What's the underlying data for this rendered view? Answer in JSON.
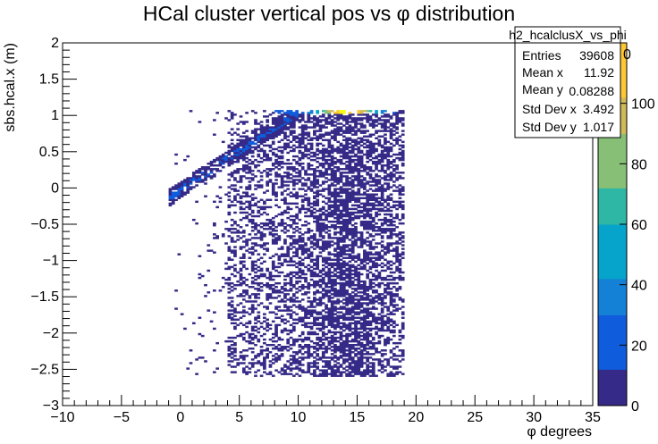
{
  "chart_data": {
    "type": "heatmap",
    "title": "HCal cluster vertical pos vs φ distribution",
    "xlabel": "φ degrees",
    "ylabel": "sbs.hcal.x (m)",
    "xlim": [
      -10,
      35
    ],
    "ylim": [
      -3,
      2
    ],
    "x_ticks": [
      -10,
      -5,
      0,
      5,
      10,
      15,
      20,
      25,
      30,
      35
    ],
    "x_tick_labels": [
      "−10",
      "−5",
      "0",
      "5",
      "10",
      "15",
      "20",
      "25",
      "30",
      "35"
    ],
    "y_ticks": [
      -3,
      -2.5,
      -2,
      -1.5,
      -1,
      -0.5,
      0,
      0.5,
      1,
      1.5,
      2
    ],
    "y_tick_labels": [
      "−3",
      "−2.5",
      "−2",
      "−1.5",
      "−1",
      "−0.5",
      "0",
      "0.5",
      "1",
      "1.5",
      "2"
    ],
    "colorbar": {
      "zlim": [
        0,
        120
      ],
      "ticks": [
        0,
        20,
        40,
        60,
        80,
        100,
        120
      ],
      "tick_labels": [
        "0",
        "20",
        "40",
        "60",
        "80",
        "100",
        ""
      ],
      "partial_label": "0",
      "palette": [
        "#352a87",
        "#0f5cdd",
        "#1481d6",
        "#06a4ca",
        "#2eb7a4",
        "#87bf77",
        "#d1bb59",
        "#fec832",
        "#f9fb0e"
      ]
    },
    "data_region": {
      "x_range": [
        -1,
        19
      ],
      "y_range": [
        -2.6,
        1.07
      ],
      "hot_band": {
        "x_range": [
          10,
          17
        ],
        "y": 1.05,
        "peak_x": 14,
        "peak_counts": 120
      },
      "diagonal_band": {
        "from": [
          -0.5,
          -0.08
        ],
        "to": [
          10,
          1.05
        ]
      }
    },
    "stats": {
      "name": "h2_hcalclusX_vs_phi",
      "rows": [
        {
          "label": "Entries",
          "value": "39608"
        },
        {
          "label": "Mean x",
          "value": "11.92"
        },
        {
          "label": "Mean y",
          "value": "0.08288"
        },
        {
          "label": "Std Dev x",
          "value": "3.492"
        },
        {
          "label": "Std Dev y",
          "value": "1.017"
        }
      ]
    },
    "grid": false,
    "legend": "top-right stats box"
  }
}
